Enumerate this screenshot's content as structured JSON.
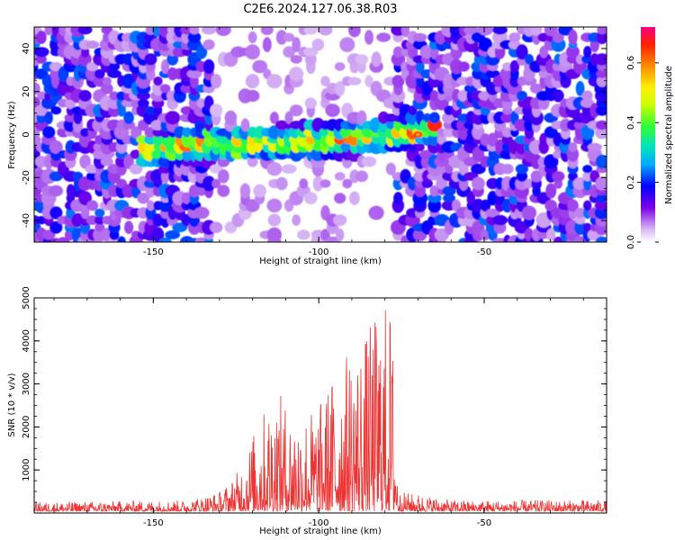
{
  "title": "C2E6.2024.127.06.38.R03",
  "chart_data": [
    {
      "type": "heatmap",
      "title": "",
      "xlabel": "Height of straight line (km)",
      "ylabel": "Frequency (Hz)",
      "xlim": [
        -186,
        -13
      ],
      "ylim": [
        -50,
        50
      ],
      "xticks": [
        -150,
        -100,
        -50
      ],
      "yticks": [
        -40,
        -20,
        0,
        20,
        40
      ],
      "colorbar": {
        "label": "Normalized spectral amplitude",
        "range": [
          0,
          0.72
        ],
        "ticks": [
          0.0,
          0.2,
          0.4,
          0.6
        ]
      },
      "band": {
        "x_range": [
          -155,
          -63
        ],
        "center_freq_at_x": [
          [
            -155,
            -8
          ],
          [
            -140,
            -5
          ],
          [
            -120,
            -4
          ],
          [
            -100,
            -3
          ],
          [
            -80,
            0
          ],
          [
            -63,
            3
          ]
        ],
        "peak": {
          "x": -70,
          "y": 0,
          "value": 0.7
        }
      },
      "noise_regions": [
        [
          -186,
          -133
        ],
        [
          -78,
          -13
        ]
      ],
      "grid": false
    },
    {
      "type": "line",
      "title": "",
      "xlabel": "Height of straight line (km)",
      "ylabel": "SNR (10 * v/v)",
      "xlim": [
        -186,
        -13
      ],
      "ylim": [
        0,
        5000
      ],
      "xticks": [
        -150,
        -100,
        -50
      ],
      "yticks": [
        1000,
        2000,
        3000,
        4000,
        5000
      ],
      "series": [
        {
          "color": "#ee3333",
          "envelope": [
            [
              -186,
              250
            ],
            [
              -140,
              300
            ],
            [
              -130,
              500
            ],
            [
              -125,
              900
            ],
            [
              -118,
              2200
            ],
            [
              -113,
              2900
            ],
            [
              -108,
              2400
            ],
            [
              -100,
              2500
            ],
            [
              -95,
              3400
            ],
            [
              -90,
              3900
            ],
            [
              -85,
              4300
            ],
            [
              -81,
              5000
            ],
            [
              -78,
              4900
            ],
            [
              -76,
              500
            ],
            [
              -70,
              450
            ],
            [
              -60,
              300
            ],
            [
              -13,
              300
            ]
          ],
          "baseline": 130
        }
      ],
      "grid": false
    }
  ]
}
